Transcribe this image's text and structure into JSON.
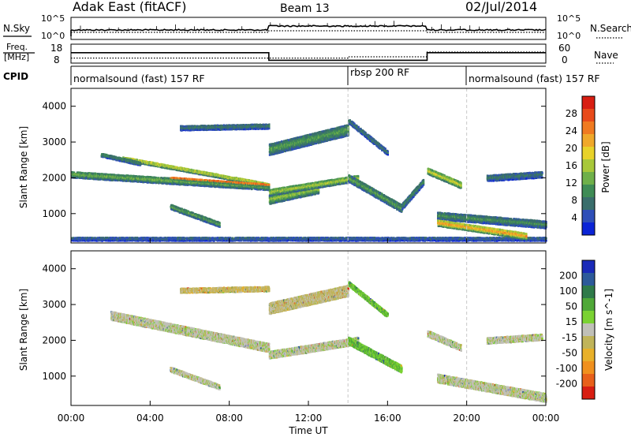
{
  "header": {
    "station": "Adak East (fitACF)",
    "beam": "Beam 13",
    "date": "02/Jul/2014"
  },
  "noise_panel": {
    "left_label": "N.Sky",
    "right_label": "N.Search",
    "ticks_left": [
      "10^5",
      "10^0"
    ],
    "ticks_right": [
      "10^5",
      "10^0"
    ]
  },
  "freq_panel": {
    "left_label_line1": "Freq.",
    "left_label_line2": "[MHz]",
    "right_label": "Nave",
    "ticks_left": [
      "18",
      "8"
    ],
    "ticks_right": [
      "60",
      "0"
    ],
    "freq_values": [
      {
        "start": 0,
        "end": 10,
        "mhz": 13.5
      },
      {
        "start": 10,
        "end": 14,
        "mhz": 9.5
      },
      {
        "start": 14,
        "end": 18,
        "mhz": 9.5
      },
      {
        "start": 18,
        "end": 24,
        "mhz": 13.5
      }
    ],
    "nave_values": [
      {
        "start": 0,
        "end": 10,
        "nave": 16
      },
      {
        "start": 10,
        "end": 14,
        "nave": 16
      },
      {
        "start": 14,
        "end": 18,
        "nave": 20
      },
      {
        "start": 18,
        "end": 24,
        "nave": 35
      }
    ]
  },
  "cpid": {
    "label": "CPID",
    "segments": [
      {
        "start": 0,
        "end": 14,
        "text": "normalsound (fast) 157 RF"
      },
      {
        "start": 14,
        "end": 20,
        "text": "rbsp 200 RF"
      },
      {
        "start": 20,
        "end": 24,
        "text": "normalsound (fast) 157 RF"
      }
    ]
  },
  "colors": {
    "power": [
      "#0b24d6",
      "#2f4fb8",
      "#3a6e6c",
      "#3f8c56",
      "#6fb04a",
      "#a8c83a",
      "#e8d22a",
      "#f0a82a",
      "#f07a20",
      "#e84a1a",
      "#d81e12"
    ],
    "velocity": [
      "#1a2ab8",
      "#2d5a9a",
      "#2f7a4a",
      "#4fa838",
      "#7ad232",
      "#c0c0b8",
      "#c0b45a",
      "#e8b02a",
      "#f0901e",
      "#e8601a",
      "#d81e12"
    ]
  },
  "chart_data": [
    {
      "type": "heatmap",
      "title": "Power",
      "xlabel": "",
      "ylabel": "Slant Range [km]",
      "xlim": [
        0,
        24
      ],
      "ylim": [
        180,
        4500
      ],
      "yticks": [
        "1000",
        "2000",
        "3000",
        "4000"
      ],
      "colorbar_label": "Power [dB]",
      "colorbar_ticks": [
        "4",
        "8",
        "12",
        "16",
        "20",
        "24",
        "28"
      ],
      "colorbar_range": [
        0,
        32
      ],
      "bands": [
        {
          "t0": 0.0,
          "t1": 10.0,
          "r0": 2100,
          "r1": 1750,
          "w": 180,
          "p": 14
        },
        {
          "t0": 2.6,
          "t1": 10.0,
          "r0": 2550,
          "r1": 1800,
          "w": 120,
          "p": 20
        },
        {
          "t0": 5.0,
          "t1": 10.0,
          "r0": 2000,
          "r1": 1800,
          "w": 80,
          "p": 26
        },
        {
          "t0": 1.5,
          "t1": 3.5,
          "r0": 2650,
          "r1": 2400,
          "w": 120,
          "p": 10
        },
        {
          "t0": 5.5,
          "t1": 10.0,
          "r0": 3400,
          "r1": 3450,
          "w": 150,
          "p": 8
        },
        {
          "t0": 5.0,
          "t1": 7.5,
          "r0": 1200,
          "r1": 700,
          "w": 170,
          "p": 12
        },
        {
          "t0": 0.0,
          "t1": 24.0,
          "r0": 300,
          "r1": 300,
          "w": 110,
          "p": 6
        },
        {
          "t0": 10.0,
          "t1": 14.0,
          "r0": 2800,
          "r1": 3350,
          "w": 320,
          "p": 12
        },
        {
          "t0": 10.0,
          "t1": 12.5,
          "r0": 1400,
          "r1": 1700,
          "w": 250,
          "p": 16
        },
        {
          "t0": 10.0,
          "t1": 14.5,
          "r0": 1600,
          "r1": 2000,
          "w": 200,
          "p": 18
        },
        {
          "t0": 14.0,
          "t1": 16.7,
          "r0": 2000,
          "r1": 1150,
          "w": 230,
          "p": 12
        },
        {
          "t0": 14.0,
          "t1": 16.0,
          "r0": 3600,
          "r1": 2700,
          "w": 150,
          "p": 8
        },
        {
          "t0": 16.7,
          "t1": 17.8,
          "r0": 1200,
          "r1": 1900,
          "w": 180,
          "p": 10
        },
        {
          "t0": 18.0,
          "t1": 19.7,
          "r0": 2200,
          "r1": 1800,
          "w": 190,
          "p": 20
        },
        {
          "t0": 18.5,
          "t1": 24.0,
          "r0": 950,
          "r1": 700,
          "w": 220,
          "p": 10
        },
        {
          "t0": 18.5,
          "t1": 23.0,
          "r0": 750,
          "r1": 380,
          "w": 200,
          "p": 26
        },
        {
          "t0": 21.0,
          "t1": 23.8,
          "r0": 2000,
          "r1": 2100,
          "w": 200,
          "p": 8
        }
      ]
    },
    {
      "type": "heatmap",
      "title": "Velocity",
      "xlabel": "Time UT",
      "ylabel": "Slant Range [km]",
      "xlim": [
        0,
        24
      ],
      "ylim": [
        180,
        4500
      ],
      "xticks": [
        "00:00",
        "04:00",
        "08:00",
        "12:00",
        "16:00",
        "20:00",
        "00:00"
      ],
      "yticks": [
        "1000",
        "2000",
        "3000",
        "4000"
      ],
      "colorbar_label": "Velocity [m s^-1]",
      "colorbar_ticks": [
        "200",
        "100",
        "50",
        "15",
        "-15",
        "-50",
        "-100",
        "-200"
      ],
      "bands": [
        {
          "t0": 2.0,
          "t1": 10.0,
          "r0": 2700,
          "r1": 1800,
          "w": 250,
          "v": 0
        },
        {
          "t0": 10.0,
          "t1": 14.5,
          "r0": 1600,
          "r1": 2000,
          "w": 220,
          "v": 0
        },
        {
          "t0": 10.0,
          "t1": 14.0,
          "r0": 2900,
          "r1": 3400,
          "w": 320,
          "v": -30
        },
        {
          "t0": 14.0,
          "t1": 16.7,
          "r0": 2000,
          "r1": 1200,
          "w": 220,
          "v": 60
        },
        {
          "t0": 14.0,
          "t1": 16.0,
          "r0": 3600,
          "r1": 2700,
          "w": 160,
          "v": 60
        },
        {
          "t0": 18.0,
          "t1": 19.7,
          "r0": 2200,
          "r1": 1800,
          "w": 190,
          "v": 0
        },
        {
          "t0": 18.5,
          "t1": 24.0,
          "r0": 950,
          "r1": 400,
          "w": 260,
          "v": 0
        },
        {
          "t0": 21.0,
          "t1": 23.8,
          "r0": 2000,
          "r1": 2100,
          "w": 200,
          "v": 0
        },
        {
          "t0": 5.0,
          "t1": 7.5,
          "r0": 1200,
          "r1": 700,
          "w": 170,
          "v": 0
        },
        {
          "t0": 5.5,
          "t1": 10.0,
          "r0": 3400,
          "r1": 3450,
          "w": 150,
          "v": -40
        }
      ]
    }
  ]
}
